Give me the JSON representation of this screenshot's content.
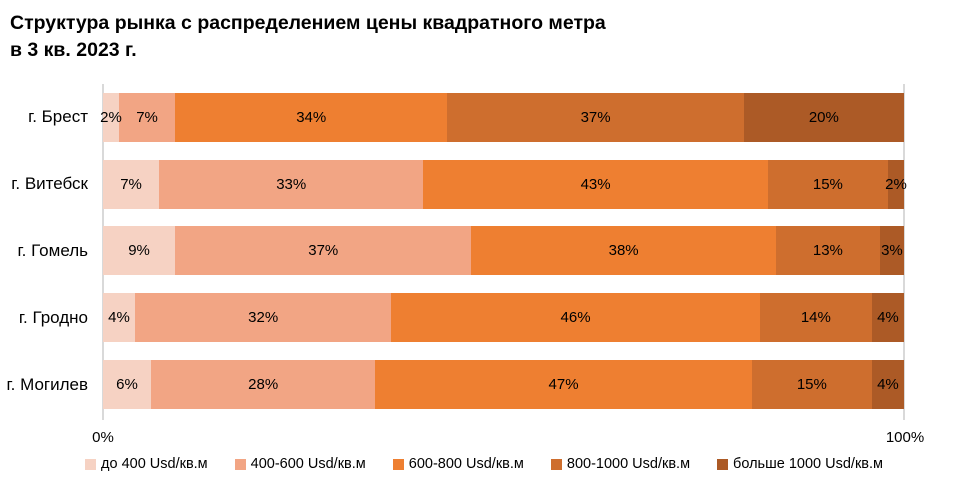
{
  "title": {
    "line1": "Структура рынка с распределением цены квадратного метра",
    "line2": "в 3 кв. 2023 г."
  },
  "x_axis": {
    "min_label": "0%",
    "max_label": "100%"
  },
  "colors": {
    "background": "#FFFFFF",
    "gridline": "#D9D9D9",
    "text": "#000000"
  },
  "chart_data": {
    "type": "bar",
    "orientation": "horizontal",
    "stacked": true,
    "grid": "vertical-edges-only",
    "legend_position": "bottom",
    "value_suffix": "%",
    "xlim": [
      0,
      100
    ],
    "title": "Структура рынка с распределением цены квадратного метра в 3 кв. 2023 г.",
    "categories": [
      "г. Брест",
      "г. Витебск",
      "г. Гомель",
      "г. Гродно",
      "г. Могилев"
    ],
    "series": [
      {
        "name": "до 400 Usd/кв.м",
        "color": "#F6D2C3",
        "values": [
          2,
          7,
          9,
          4,
          6
        ]
      },
      {
        "name": "400-600 Usd/кв.м",
        "color": "#F2A584",
        "values": [
          7,
          33,
          37,
          32,
          28
        ]
      },
      {
        "name": "600-800 Usd/кв.м",
        "color": "#EE7F31",
        "values": [
          34,
          43,
          38,
          46,
          47
        ]
      },
      {
        "name": "800-1000 Usd/кв.м",
        "color": "#CE6E2E",
        "values": [
          37,
          15,
          13,
          14,
          15
        ]
      },
      {
        "name": "больше 1000 Usd/кв.м",
        "color": "#AC5A26",
        "values": [
          20,
          2,
          3,
          4,
          4
        ]
      }
    ]
  }
}
